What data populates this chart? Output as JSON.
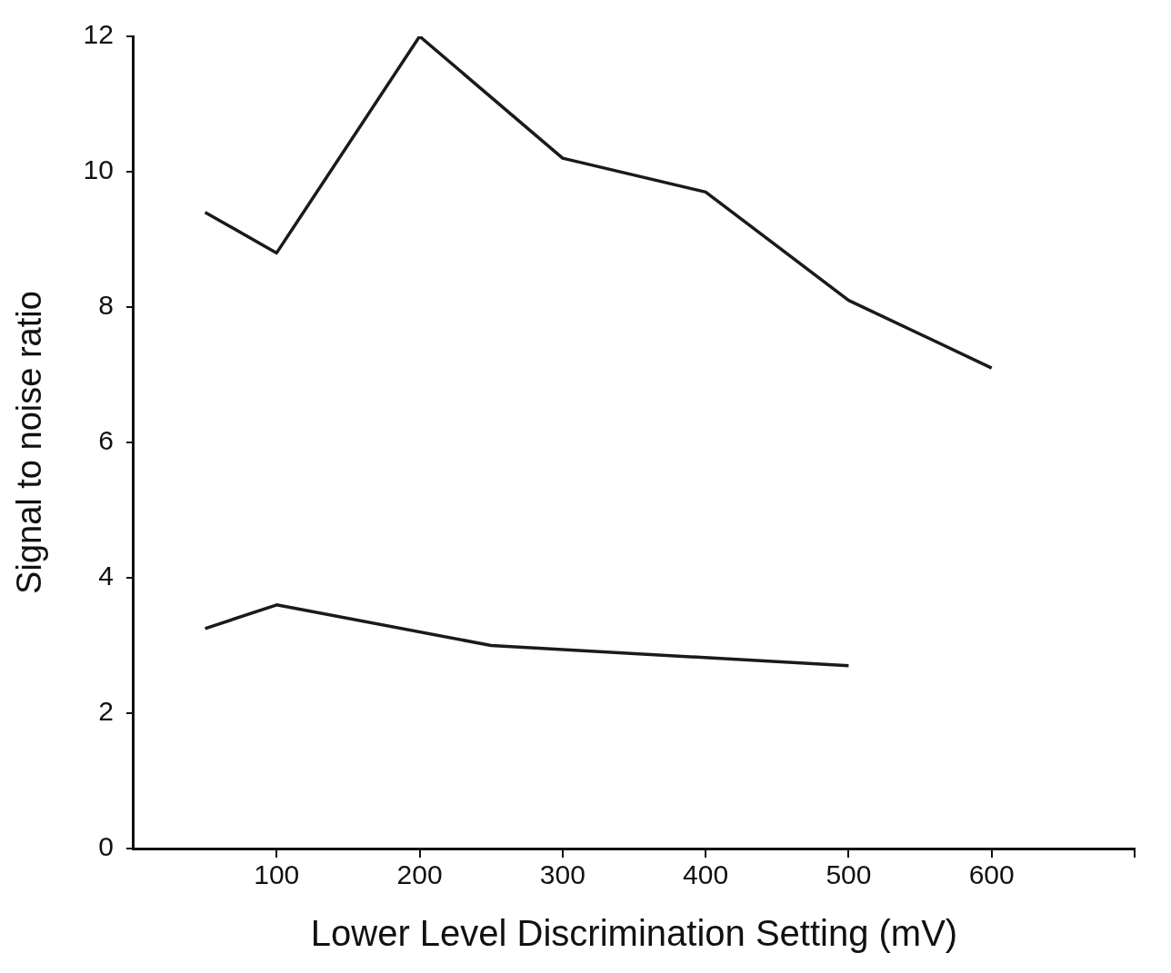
{
  "chart_data": {
    "type": "line",
    "xlabel": "Lower Level Discrimination Setting (mV)",
    "ylabel": "Signal to noise ratio",
    "series": [
      {
        "color": "#1a1a1a",
        "x": [
          50,
          100,
          200,
          300,
          400,
          500,
          600
        ],
        "values": [
          9.4,
          8.8,
          12,
          10.2,
          9.7,
          8.1,
          7.1
        ]
      },
      {
        "color": "#1a1a1a",
        "x": [
          50,
          100,
          250,
          500
        ],
        "values": [
          3.25,
          3.6,
          3.0,
          2.7
        ]
      }
    ],
    "xlim": [
      0,
      700
    ],
    "xticks": [
      100,
      200,
      300,
      400,
      500,
      600,
      {
        "value": 700,
        "label": null
      }
    ],
    "ylim": [
      0,
      12
    ],
    "yticks": [
      0,
      2,
      4,
      6,
      8,
      10,
      12
    ],
    "grid": false,
    "legend": false,
    "marker": "none",
    "line_style": "solid"
  }
}
